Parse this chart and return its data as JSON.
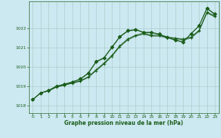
{
  "xlabel": "Graphe pression niveau de la mer (hPa)",
  "background_color": "#cce8f0",
  "grid_color": "#aacccc",
  "line_color": "#1a5c1a",
  "xlim": [
    -0.5,
    23.5
  ],
  "ylim": [
    1017.6,
    1023.4
  ],
  "yticks": [
    1018,
    1019,
    1020,
    1021,
    1022
  ],
  "xticks": [
    0,
    1,
    2,
    3,
    4,
    5,
    6,
    7,
    8,
    9,
    10,
    11,
    12,
    13,
    14,
    15,
    16,
    17,
    18,
    19,
    20,
    21,
    22,
    23
  ],
  "series": [
    {
      "y": [
        1018.3,
        1018.65,
        1018.75,
        1018.95,
        1019.05,
        1019.15,
        1019.25,
        1019.45,
        1019.8,
        1020.15,
        1020.55,
        1021.05,
        1021.4,
        1021.6,
        1021.7,
        1021.6,
        1021.6,
        1021.5,
        1021.45,
        1021.4,
        1021.5,
        1021.85,
        1022.8,
        1022.6
      ],
      "marker": "+"
    },
    {
      "y": [
        1018.3,
        1018.65,
        1018.75,
        1018.98,
        1019.08,
        1019.18,
        1019.28,
        1019.48,
        1019.85,
        1020.2,
        1020.6,
        1021.1,
        1021.45,
        1021.65,
        1021.75,
        1021.65,
        1021.65,
        1021.55,
        1021.5,
        1021.45,
        1021.55,
        1021.9,
        1022.85,
        1022.65
      ],
      "marker": "+"
    },
    {
      "y": [
        1018.3,
        1018.65,
        1018.78,
        1019.0,
        1019.1,
        1019.22,
        1019.35,
        1019.65,
        1020.25,
        1020.45,
        1021.0,
        1021.55,
        1021.85,
        1021.92,
        1021.78,
        1021.78,
        1021.68,
        1021.52,
        1021.38,
        1021.28,
        1021.72,
        1022.12,
        1023.02,
        1022.72
      ],
      "marker": "+"
    },
    {
      "y": [
        1018.3,
        1018.65,
        1018.78,
        1019.0,
        1019.1,
        1019.22,
        1019.38,
        1019.68,
        1020.28,
        1020.48,
        1021.03,
        1021.58,
        1021.88,
        1021.95,
        1021.8,
        1021.8,
        1021.7,
        1021.55,
        1021.4,
        1021.3,
        1021.73,
        1022.13,
        1023.05,
        1022.75
      ],
      "marker": "D"
    }
  ]
}
